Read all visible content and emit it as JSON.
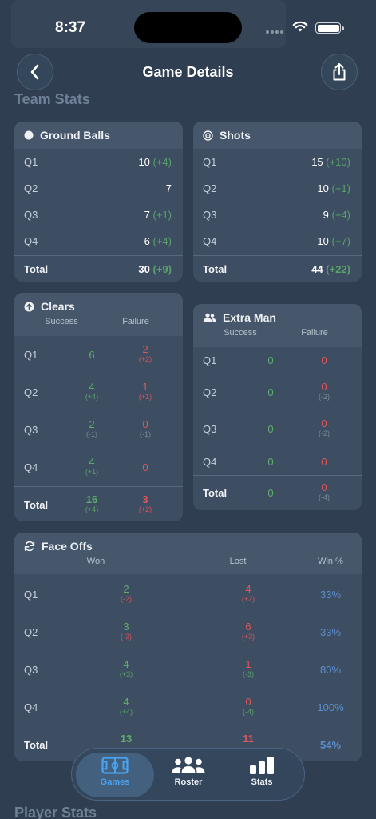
{
  "status": {
    "time": "8:37"
  },
  "header": {
    "title": "Game Details",
    "back_icon": "chevron-left-icon",
    "share_icon": "share-icon"
  },
  "sections": {
    "team_stats": "Team Stats",
    "player_stats": "Player Stats"
  },
  "ground_balls": {
    "title": "Ground Balls",
    "rows": [
      {
        "q": "Q1",
        "value": "10",
        "delta": "(+4)"
      },
      {
        "q": "Q2",
        "value": "7",
        "delta": ""
      },
      {
        "q": "Q3",
        "value": "7",
        "delta": "(+1)"
      },
      {
        "q": "Q4",
        "value": "6",
        "delta": "(+4)"
      }
    ],
    "total": {
      "label": "Total",
      "value": "30",
      "delta": "(+9)"
    }
  },
  "shots": {
    "title": "Shots",
    "rows": [
      {
        "q": "Q1",
        "value": "15",
        "delta": "(+10)"
      },
      {
        "q": "Q2",
        "value": "10",
        "delta": "(+1)"
      },
      {
        "q": "Q3",
        "value": "9",
        "delta": "(+4)"
      },
      {
        "q": "Q4",
        "value": "10",
        "delta": "(+7)"
      }
    ],
    "total": {
      "label": "Total",
      "value": "44",
      "delta": "(+22)"
    }
  },
  "clears": {
    "title": "Clears",
    "col_success": "Success",
    "col_failure": "Failure",
    "rows": [
      {
        "q": "Q1",
        "success": "6",
        "success_delta": "",
        "failure": "2",
        "failure_delta": "(+2)"
      },
      {
        "q": "Q2",
        "success": "4",
        "success_delta": "(+4)",
        "failure": "1",
        "failure_delta": "(+1)"
      },
      {
        "q": "Q3",
        "success": "2",
        "success_delta": "(-1)",
        "failure": "0",
        "failure_delta": "(-1)"
      },
      {
        "q": "Q4",
        "success": "4",
        "success_delta": "(+1)",
        "failure": "0",
        "failure_delta": ""
      }
    ],
    "total": {
      "label": "Total",
      "success": "16",
      "success_delta": "(+4)",
      "failure": "3",
      "failure_delta": "(+2)"
    }
  },
  "extra_man": {
    "title": "Extra Man",
    "col_success": "Success",
    "col_failure": "Failure",
    "rows": [
      {
        "q": "Q1",
        "success": "0",
        "failure": "0",
        "failure_delta": ""
      },
      {
        "q": "Q2",
        "success": "0",
        "failure": "0",
        "failure_delta": "(-2)"
      },
      {
        "q": "Q3",
        "success": "0",
        "failure": "0",
        "failure_delta": "(-2)"
      },
      {
        "q": "Q4",
        "success": "0",
        "failure": "0",
        "failure_delta": ""
      }
    ],
    "total": {
      "label": "Total",
      "success": "0",
      "failure": "0",
      "failure_delta": "(-4)"
    }
  },
  "face_offs": {
    "title": "Face Offs",
    "col_won": "Won",
    "col_lost": "Lost",
    "col_pct": "Win %",
    "rows": [
      {
        "q": "Q1",
        "won": "2",
        "won_delta": "(-2)",
        "lost": "4",
        "lost_delta": "(+2)",
        "pct": "33%"
      },
      {
        "q": "Q2",
        "won": "3",
        "won_delta": "(-3)",
        "lost": "6",
        "lost_delta": "(+3)",
        "pct": "33%"
      },
      {
        "q": "Q3",
        "won": "4",
        "won_delta": "(+3)",
        "lost": "1",
        "lost_delta": "(-3)",
        "pct": "80%"
      },
      {
        "q": "Q4",
        "won": "4",
        "won_delta": "(+4)",
        "lost": "0",
        "lost_delta": "(-4)",
        "pct": "100%"
      }
    ],
    "total": {
      "label": "Total",
      "won": "13",
      "lost": "11",
      "pct": "54%"
    }
  },
  "tabbar": {
    "tabs": [
      {
        "label": "Games",
        "icon": "field-icon",
        "active": true
      },
      {
        "label": "Roster",
        "icon": "people-icon",
        "active": false
      },
      {
        "label": "Stats",
        "icon": "bar-chart-icon",
        "active": false
      }
    ]
  },
  "colors": {
    "background": "#2f3e50",
    "card": "#3d4e62",
    "positive": "#5fae6d",
    "negative": "#e0555b",
    "percent": "#5b8fd0",
    "active_tab": "#4aa3f0"
  }
}
